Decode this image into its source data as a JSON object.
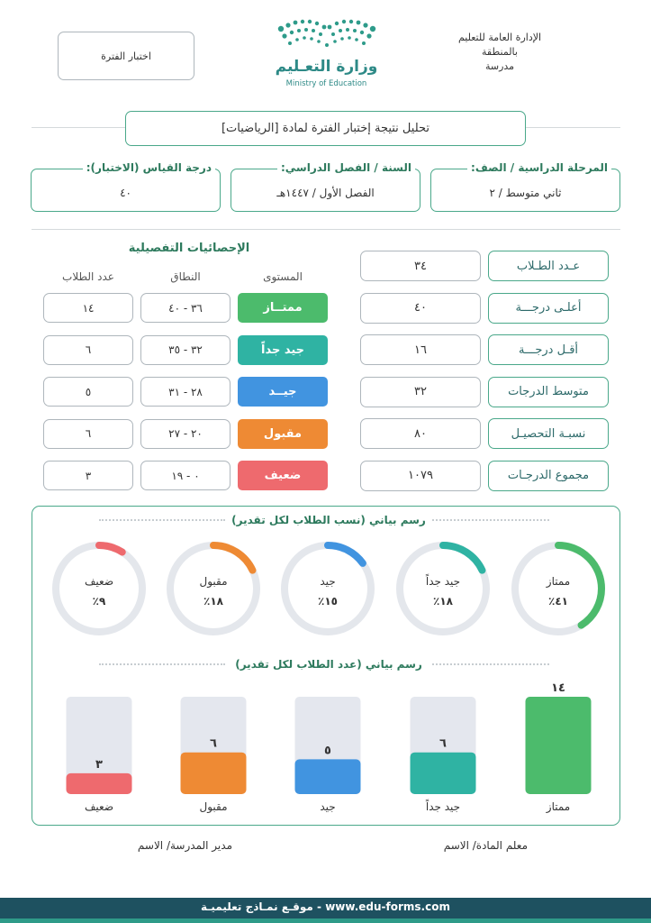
{
  "header": {
    "org_line1": "الإدارة العامة للتعليم",
    "org_line2": "بالمنطقة",
    "org_line3": "مدرسة",
    "ministry_ar": "وزارة التعـليم",
    "ministry_en": "Ministry of Education",
    "exam_label": "اختبار الفترة"
  },
  "title": "تحليل نتيجة إختبار الفترة لمادة [الرياضيات]",
  "info": {
    "stage_label": "المرحلة الدراسية / الصف:",
    "stage_value": "ثاني متوسط / ٢",
    "year_label": "السنة / الفصل الدراسي:",
    "year_value": "الفصل الأول / ١٤٤٧هـ",
    "score_label": "درجة القياس (الاختبار):",
    "score_value": "٤٠"
  },
  "stats": [
    {
      "label": "عـدد الطـلاب",
      "value": "٣٤"
    },
    {
      "label": "أعلـى درجـــة",
      "value": "٤٠"
    },
    {
      "label": "أقـل درجـــة",
      "value": "١٦"
    },
    {
      "label": "متوسط الدرجات",
      "value": "٣٢"
    },
    {
      "label": "نسبـة التحصيـل",
      "value": "٨٠"
    },
    {
      "label": "مجموع الدرجـات",
      "value": "١٠٧٩"
    }
  ],
  "details": {
    "title": "الإحصائيات التفصيلية",
    "col_level": "المستوى",
    "col_range": "النطاق",
    "col_count": "عدد الطلاب",
    "rows": [
      {
        "level": "ممتــاز",
        "range": "٣٦ - ٤٠",
        "count": "١٤",
        "color": "#4cbb6c"
      },
      {
        "level": "جيد جداً",
        "range": "٣٢ - ٣٥",
        "count": "٦",
        "color": "#2fb3a3"
      },
      {
        "level": "جيــد",
        "range": "٢٨ - ٣١",
        "count": "٥",
        "color": "#4194e0"
      },
      {
        "level": "مقبول",
        "range": "٢٠ - ٢٧",
        "count": "٦",
        "color": "#ee8a34"
      },
      {
        "level": "ضعيف",
        "range": "٠ - ١٩",
        "count": "٣",
        "color": "#ee6a6e"
      }
    ]
  },
  "chart_data": [
    {
      "type": "donut",
      "title": "رسم بياني (نسب الطلاب لكل تقدير)",
      "categories": [
        "ممتاز",
        "جيد جداً",
        "جيد",
        "مقبول",
        "ضعيف"
      ],
      "values": [
        41,
        18,
        15,
        18,
        9
      ],
      "value_labels": [
        "٤١٪",
        "١٨٪",
        "١٥٪",
        "١٨٪",
        "٩٪"
      ],
      "colors": [
        "#4cbb6c",
        "#2fb3a3",
        "#4194e0",
        "#ee8a34",
        "#ee6a6e"
      ],
      "max": 100
    },
    {
      "type": "bar",
      "title": "رسم بياني (عدد الطلاب لكل تقدير)",
      "categories": [
        "ممتاز",
        "جيد جداً",
        "جيد",
        "مقبول",
        "ضعيف"
      ],
      "values": [
        14,
        6,
        5,
        6,
        3
      ],
      "value_labels": [
        "١٤",
        "٦",
        "٥",
        "٦",
        "٣"
      ],
      "colors": [
        "#4cbb6c",
        "#2fb3a3",
        "#4194e0",
        "#ee8a34",
        "#ee6a6e"
      ],
      "ylim": [
        0,
        14
      ]
    }
  ],
  "signatures": {
    "teacher": "معلم المادة/ الاسم",
    "principal": "مدير المدرسة/ الاسم"
  },
  "footer": "www.edu-forms.com - موقـع نمـاذج تعليميـة"
}
